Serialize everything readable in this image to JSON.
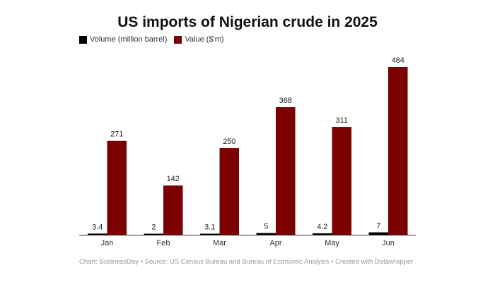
{
  "chart_data": {
    "type": "bar",
    "title": "US imports of Nigerian crude in 2025",
    "categories": [
      "Jan",
      "Feb",
      "Mar",
      "Apr",
      "May",
      "Jun"
    ],
    "series": [
      {
        "name": "Volume (million barrel)",
        "color": "#000000",
        "values": [
          3.4,
          2,
          3.1,
          5,
          4.2,
          7
        ],
        "labels": [
          "3.4",
          "2",
          "3.1",
          "5",
          "4.2",
          "7"
        ]
      },
      {
        "name": "Value ($'m)",
        "color": "#7b0000",
        "values": [
          271,
          142,
          250,
          368,
          311,
          484
        ],
        "labels": [
          "271",
          "142",
          "250",
          "368",
          "311",
          "484"
        ]
      }
    ],
    "xlabel": "",
    "ylabel": "",
    "ylim": [
      0,
      484
    ],
    "grid": false,
    "legend": "top-left"
  },
  "footer": "Chart: BusinessDay • Source: US Census Bureau and Bureau of Economic Analysis • Created with Datawrapper"
}
